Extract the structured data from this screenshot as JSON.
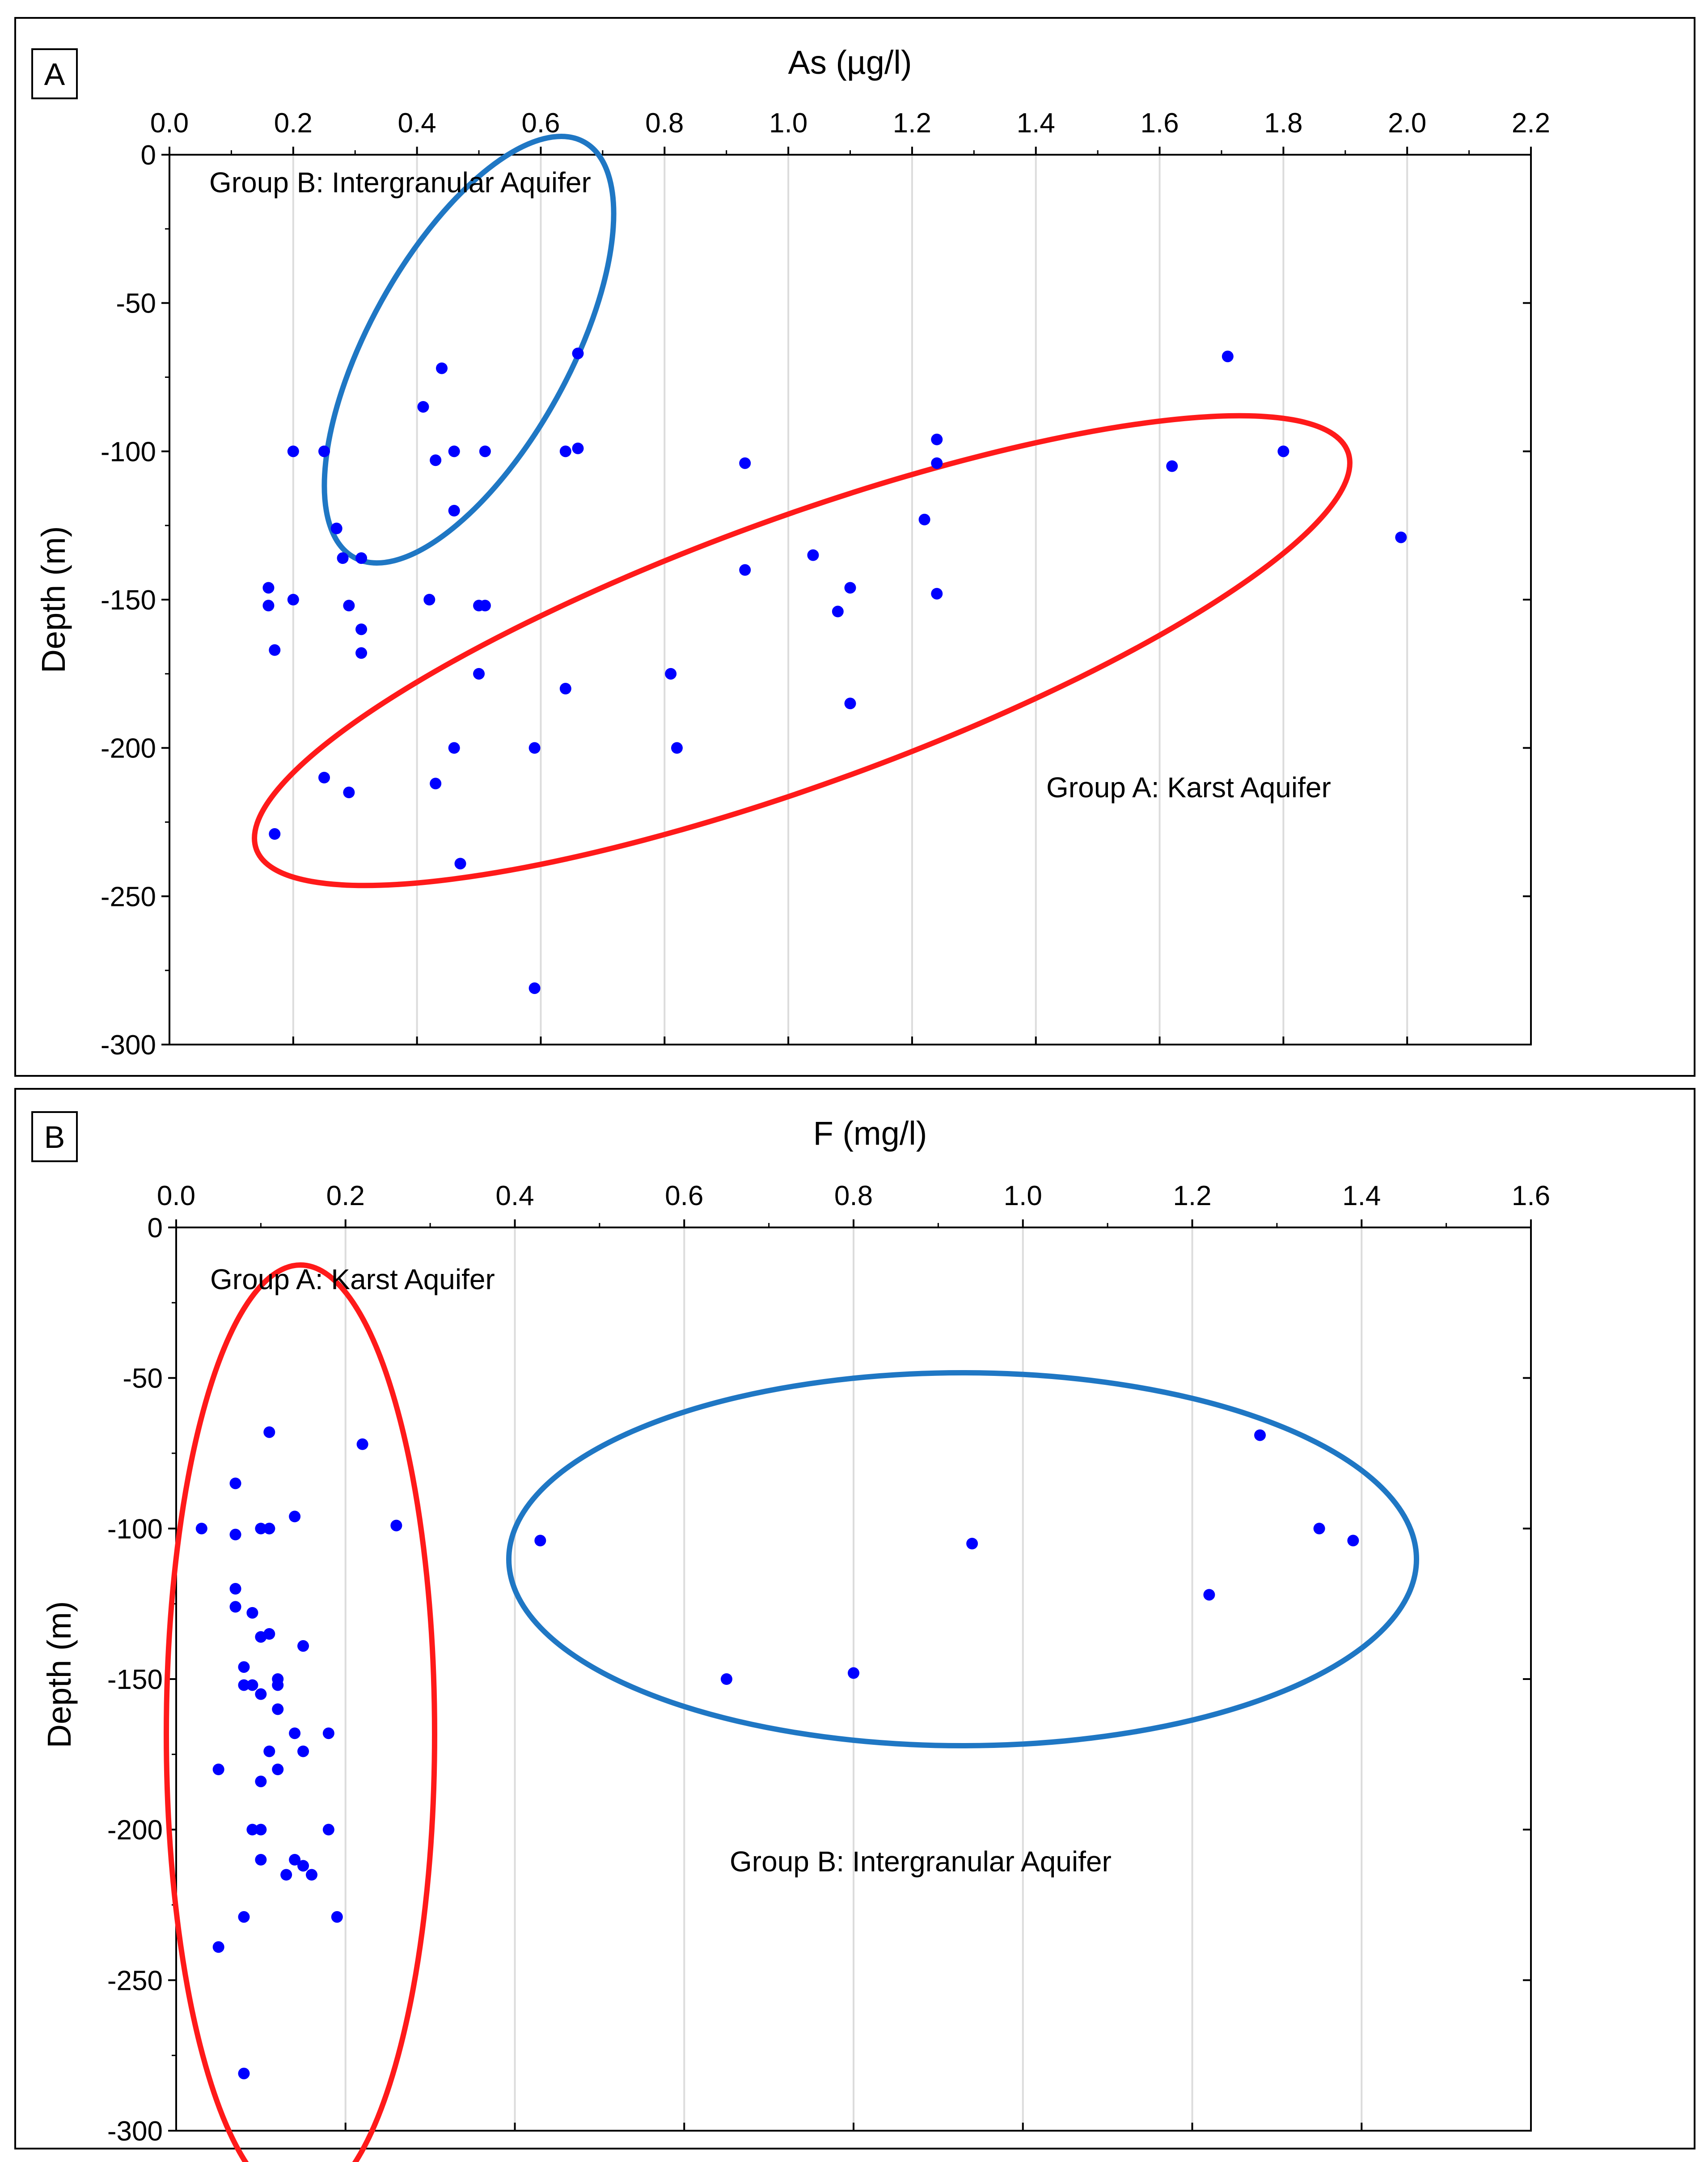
{
  "chart_data": [
    {
      "panel": "A",
      "type": "scatter",
      "title": "",
      "xlabel": "As (µg/l)",
      "ylabel": "Depth (m)",
      "xlim": [
        0,
        2.2
      ],
      "ylim": [
        -300,
        0
      ],
      "xticks": [
        "0.0",
        "0.2",
        "0.4",
        "0.6",
        "0.8",
        "1.0",
        "1.2",
        "1.4",
        "1.6",
        "1.8",
        "2.0",
        "2.2"
      ],
      "xtick_values": [
        0,
        0.2,
        0.4,
        0.6,
        0.8,
        1.0,
        1.2,
        1.4,
        1.6,
        1.8,
        2.0,
        2.2
      ],
      "yticks": [
        "0",
        "-50",
        "-100",
        "-150",
        "-200",
        "-250",
        "-300"
      ],
      "ytick_values": [
        0,
        -50,
        -100,
        -150,
        -200,
        -250,
        -300
      ],
      "grid": "vertical",
      "point_color": "#0000ff",
      "x": [
        0.66,
        1.71,
        0.44,
        0.41,
        0.2,
        0.25,
        0.43,
        0.46,
        0.51,
        0.64,
        0.66,
        0.93,
        1.24,
        1.24,
        1.62,
        1.8,
        1.99,
        0.46,
        0.27,
        0.28,
        0.31,
        1.22,
        0.93,
        1.04,
        0.16,
        0.16,
        0.2,
        0.42,
        0.29,
        0.5,
        1.1,
        1.24,
        0.51,
        1.08,
        0.31,
        0.17,
        0.31,
        0.5,
        0.81,
        0.64,
        1.1,
        0.46,
        0.59,
        0.82,
        0.25,
        0.43,
        0.29,
        0.17,
        0.47,
        0.59
      ],
      "y": [
        -67,
        -68,
        -72,
        -85,
        -100,
        -100,
        -103,
        -100,
        -100,
        -100,
        -99,
        -104,
        -96,
        -104,
        -105,
        -100,
        -129,
        -120,
        -126,
        -136,
        -136,
        -123,
        -140,
        -135,
        -146,
        -152,
        -150,
        -150,
        -152,
        -152,
        -146,
        -148,
        -152,
        -154,
        -160,
        -167,
        -168,
        -175,
        -175,
        -180,
        -185,
        -200,
        -200,
        -200,
        -210,
        -212,
        -215,
        -229,
        -239,
        -281
      ],
      "annotations": [
        "Group B: Intergranular Aquifer",
        "Group A: Karst Aquifer"
      ],
      "ellipse_colors": [
        "#1f77c4",
        "#ff1a1a"
      ]
    },
    {
      "panel": "B",
      "type": "scatter",
      "title": "",
      "xlabel": "F (mg/l)",
      "ylabel": "Depth (m)",
      "xlim": [
        0,
        1.6
      ],
      "ylim": [
        -300,
        0
      ],
      "xticks": [
        "0.0",
        "0.2",
        "0.4",
        "0.6",
        "0.8",
        "1.0",
        "1.2",
        "1.4",
        "1.6"
      ],
      "xtick_values": [
        0,
        0.2,
        0.4,
        0.6,
        0.8,
        1.0,
        1.2,
        1.4,
        1.6
      ],
      "yticks": [
        "0",
        "-50",
        "-100",
        "-150",
        "-200",
        "-250",
        "-300"
      ],
      "ytick_values": [
        0,
        -50,
        -100,
        -150,
        -200,
        -250,
        -300
      ],
      "grid": "vertical",
      "point_color": "#0000ff",
      "x": [
        0.11,
        0.22,
        0.07,
        0.03,
        0.1,
        0.07,
        0.11,
        0.11,
        0.14,
        0.26,
        0.43,
        0.94,
        1.28,
        1.35,
        1.39,
        0.07,
        0.07,
        0.09,
        0.11,
        0.1,
        0.15,
        0.08,
        0.12,
        0.12,
        0.08,
        0.09,
        0.1,
        0.12,
        0.14,
        0.18,
        0.11,
        0.15,
        0.65,
        0.8,
        1.22,
        0.12,
        0.1,
        0.05,
        0.18,
        0.09,
        0.1,
        0.14,
        0.15,
        0.16,
        0.1,
        0.13,
        0.08,
        0.19,
        0.05,
        0.08
      ],
      "y": [
        -68,
        -72,
        -85,
        -100,
        -100,
        -102,
        -100,
        -100,
        -96,
        -99,
        -104,
        -105,
        -69,
        -100,
        -104,
        -120,
        -126,
        -128,
        -135,
        -136,
        -139,
        -146,
        -152,
        -150,
        -152,
        -152,
        -155,
        -160,
        -168,
        -168,
        -174,
        -174,
        -150,
        -148,
        -122,
        -180,
        -184,
        -180,
        -200,
        -200,
        -200,
        -210,
        -212,
        -215,
        -210,
        -215,
        -229,
        -229,
        -239,
        -281
      ],
      "annotations": [
        "Group A: Karst Aquifer",
        "Group B: Intergranular Aquifer"
      ],
      "ellipse_colors": [
        "#ff1a1a",
        "#1f77c4"
      ]
    }
  ]
}
